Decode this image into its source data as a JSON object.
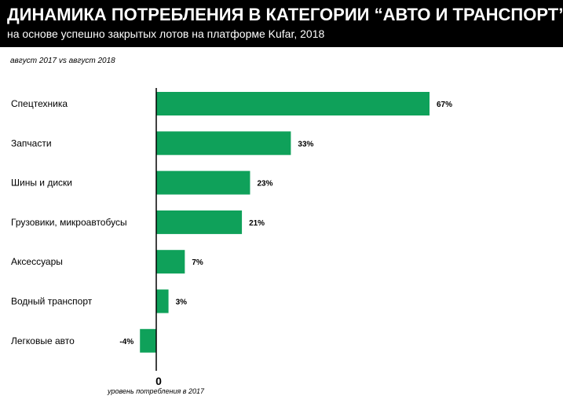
{
  "header": {
    "title": "ДИНАМИКА ПОТРЕБЛЕНИЯ В КАТЕГОРИИ “АВТО И ТРАНСПОРТ”",
    "subtitle": "на основе успешно закрытых лотов на платформе Kufar, 2018"
  },
  "period_note": "август 2017 vs август 2018",
  "baseline_caption": "уровень потребления в 2017",
  "colors": {
    "bar": "#0fa15a",
    "header_bg": "#000000",
    "header_text": "#ffffff"
  },
  "chart_data": {
    "type": "bar",
    "orientation": "horizontal",
    "categories": [
      "Спецтехника",
      "Запчасти",
      "Шины и диски",
      "Грузовики, микроавтобусы",
      "Аксессуары",
      "Водный транспорт",
      "Легковые авто"
    ],
    "values": [
      67,
      33,
      23,
      21,
      7,
      3,
      -4
    ],
    "value_labels": [
      "67%",
      "33%",
      "23%",
      "21%",
      "7%",
      "3%",
      "-4%"
    ],
    "zero_label": "0",
    "unit": "%",
    "xlim": [
      -4,
      67
    ],
    "grid": false,
    "legend": "none"
  }
}
